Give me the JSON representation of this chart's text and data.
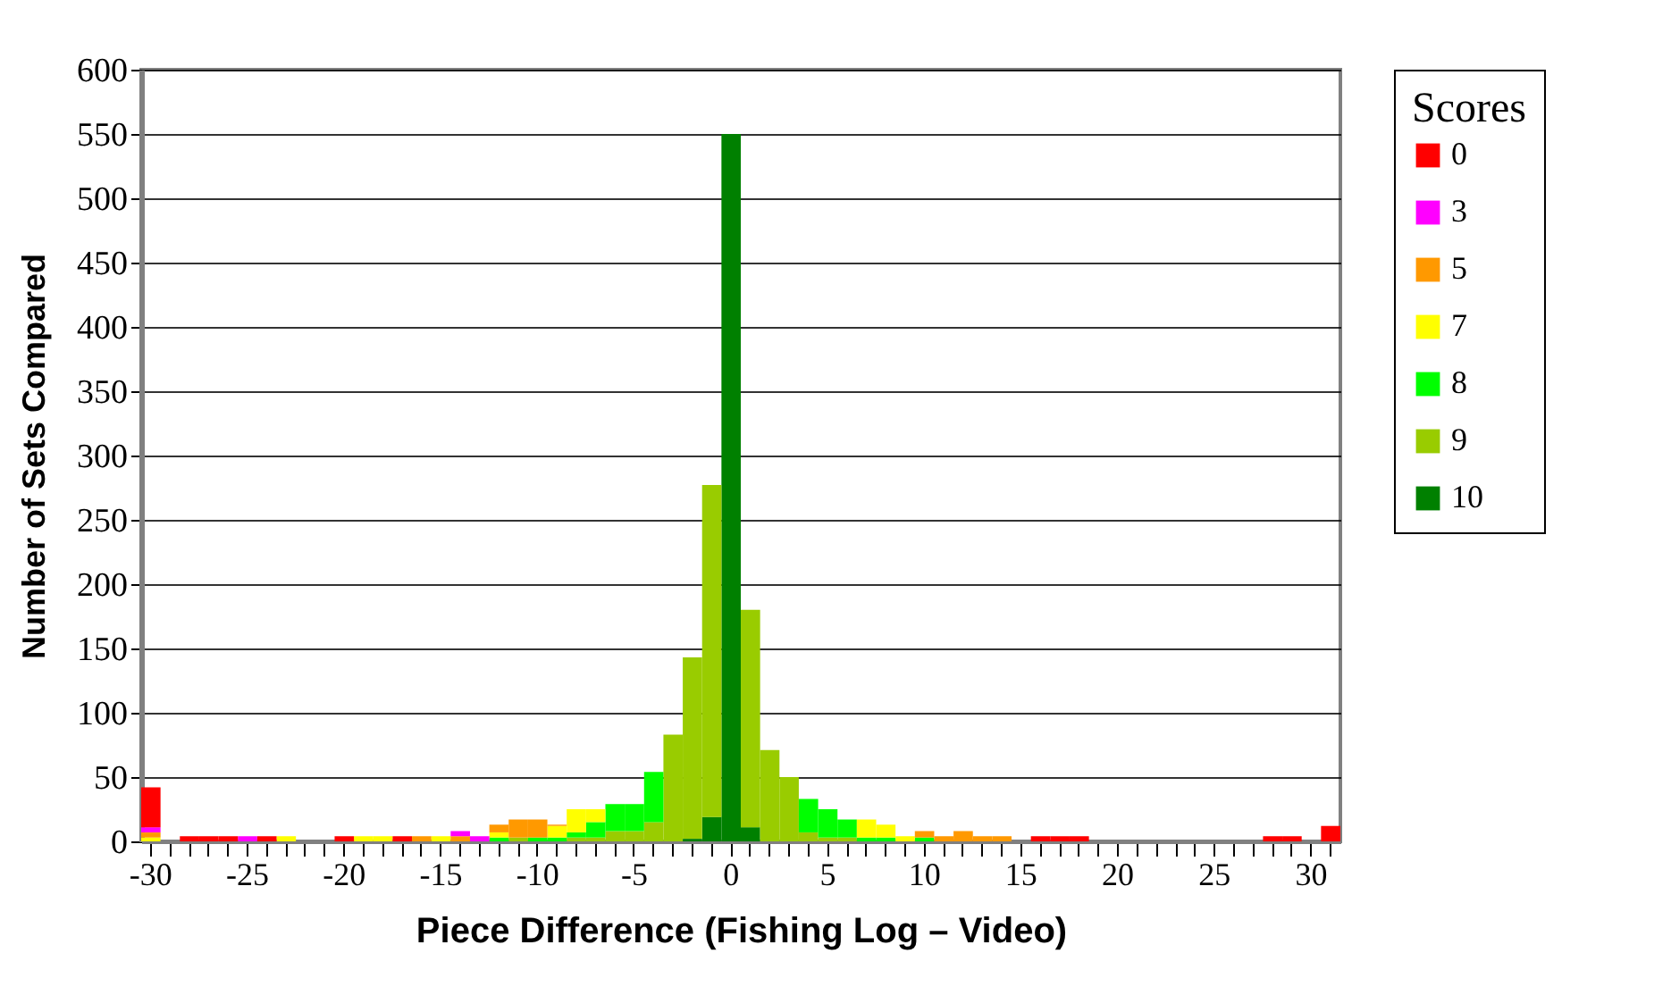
{
  "chart_data": {
    "type": "bar",
    "stacked": true,
    "xlabel": "Piece Difference (Fishing Log – Video)",
    "ylabel": "Number of Sets Compared",
    "legend_title": "Scores",
    "legend": "right",
    "grid": "y",
    "categories": [
      "-30",
      null,
      null,
      null,
      null,
      "-25",
      null,
      null,
      null,
      null,
      "-20",
      null,
      null,
      null,
      null,
      "-15",
      null,
      null,
      null,
      null,
      "-10",
      null,
      null,
      null,
      null,
      "-5",
      null,
      null,
      null,
      null,
      "0",
      null,
      null,
      null,
      null,
      "5",
      null,
      null,
      null,
      null,
      "10",
      null,
      null,
      null,
      null,
      "15",
      null,
      null,
      null,
      null,
      "20",
      null,
      null,
      null,
      null,
      "25",
      null,
      null,
      null,
      null,
      "30",
      null
    ],
    "ylim": [
      0,
      600
    ],
    "yticks": [
      0,
      50,
      100,
      150,
      200,
      250,
      300,
      350,
      400,
      450,
      500,
      550,
      600
    ],
    "series": [
      {
        "name": "10",
        "color": "#008000",
        "values": [
          null,
          null,
          null,
          null,
          null,
          null,
          null,
          null,
          null,
          null,
          null,
          null,
          null,
          null,
          null,
          null,
          null,
          null,
          null,
          null,
          null,
          null,
          null,
          null,
          null,
          null,
          null,
          null,
          2,
          19,
          550,
          11,
          null,
          null,
          null,
          null,
          null,
          null,
          null,
          null,
          null,
          null,
          null,
          null,
          null,
          null,
          null,
          null,
          null,
          null,
          null,
          null,
          null,
          null,
          null,
          null,
          null,
          null,
          null,
          null,
          null,
          null
        ]
      },
      {
        "name": "9",
        "color": "#99cc00",
        "values": [
          null,
          null,
          null,
          null,
          null,
          null,
          null,
          null,
          null,
          null,
          null,
          null,
          null,
          null,
          null,
          null,
          null,
          null,
          null,
          3,
          null,
          null,
          3,
          3,
          8,
          8,
          15,
          83,
          141,
          258,
          null,
          169,
          71,
          50,
          7,
          3,
          3,
          null,
          null,
          null,
          null,
          null,
          null,
          null,
          null,
          null,
          null,
          null,
          null,
          null,
          null,
          null,
          null,
          null,
          null,
          null,
          null,
          null,
          null,
          null,
          null,
          null
        ]
      },
      {
        "name": "8",
        "color": "#00ff00",
        "values": [
          null,
          null,
          null,
          null,
          null,
          null,
          null,
          null,
          null,
          null,
          null,
          null,
          null,
          null,
          null,
          null,
          null,
          null,
          3,
          null,
          3,
          3,
          4,
          12,
          21,
          21,
          39,
          null,
          null,
          null,
          null,
          null,
          null,
          null,
          26,
          22,
          14,
          3,
          3,
          null,
          3,
          null,
          null,
          null,
          null,
          null,
          null,
          null,
          null,
          null,
          null,
          null,
          null,
          null,
          null,
          null,
          null,
          null,
          null,
          null,
          null,
          null
        ]
      },
      {
        "name": "7",
        "color": "#ffff00",
        "values": [
          3,
          null,
          null,
          null,
          null,
          null,
          null,
          4,
          null,
          null,
          null,
          4,
          4,
          null,
          null,
          4,
          null,
          null,
          4,
          null,
          null,
          9,
          18,
          10,
          null,
          null,
          null,
          null,
          null,
          null,
          null,
          null,
          null,
          null,
          null,
          null,
          null,
          14,
          10,
          4,
          null,
          null,
          null,
          null,
          null,
          null,
          null,
          null,
          null,
          null,
          null,
          null,
          null,
          null,
          null,
          null,
          null,
          null,
          null,
          null,
          null,
          null
        ]
      },
      {
        "name": "5",
        "color": "#ff9900",
        "values": [
          4,
          null,
          null,
          null,
          null,
          null,
          null,
          null,
          null,
          null,
          null,
          null,
          null,
          null,
          4,
          null,
          4,
          null,
          6,
          14,
          14,
          1,
          null,
          null,
          null,
          null,
          null,
          null,
          null,
          null,
          null,
          null,
          null,
          null,
          null,
          null,
          null,
          null,
          null,
          null,
          5,
          4,
          8,
          4,
          4,
          null,
          null,
          null,
          null,
          null,
          null,
          null,
          null,
          null,
          null,
          null,
          null,
          null,
          null,
          null,
          null,
          null
        ]
      },
      {
        "name": "3",
        "color": "#ff00ff",
        "values": [
          4,
          null,
          null,
          null,
          null,
          4,
          null,
          null,
          null,
          null,
          null,
          null,
          null,
          null,
          null,
          null,
          4,
          4,
          null,
          null,
          null,
          null,
          null,
          null,
          null,
          null,
          null,
          null,
          null,
          null,
          null,
          null,
          null,
          null,
          null,
          null,
          null,
          null,
          null,
          null,
          null,
          null,
          null,
          null,
          null,
          null,
          null,
          null,
          null,
          null,
          null,
          null,
          null,
          null,
          null,
          null,
          null,
          null,
          null,
          null,
          null,
          null
        ]
      },
      {
        "name": "0",
        "color": "#ff0000",
        "values": [
          31,
          null,
          4,
          4,
          4,
          null,
          4,
          null,
          null,
          null,
          4,
          null,
          null,
          4,
          null,
          null,
          null,
          null,
          null,
          null,
          null,
          null,
          null,
          null,
          null,
          null,
          null,
          null,
          null,
          null,
          null,
          null,
          null,
          null,
          null,
          null,
          null,
          null,
          null,
          null,
          null,
          null,
          null,
          null,
          null,
          null,
          4,
          4,
          4,
          null,
          null,
          null,
          null,
          null,
          null,
          null,
          null,
          null,
          4,
          4,
          null,
          12
        ]
      }
    ]
  }
}
